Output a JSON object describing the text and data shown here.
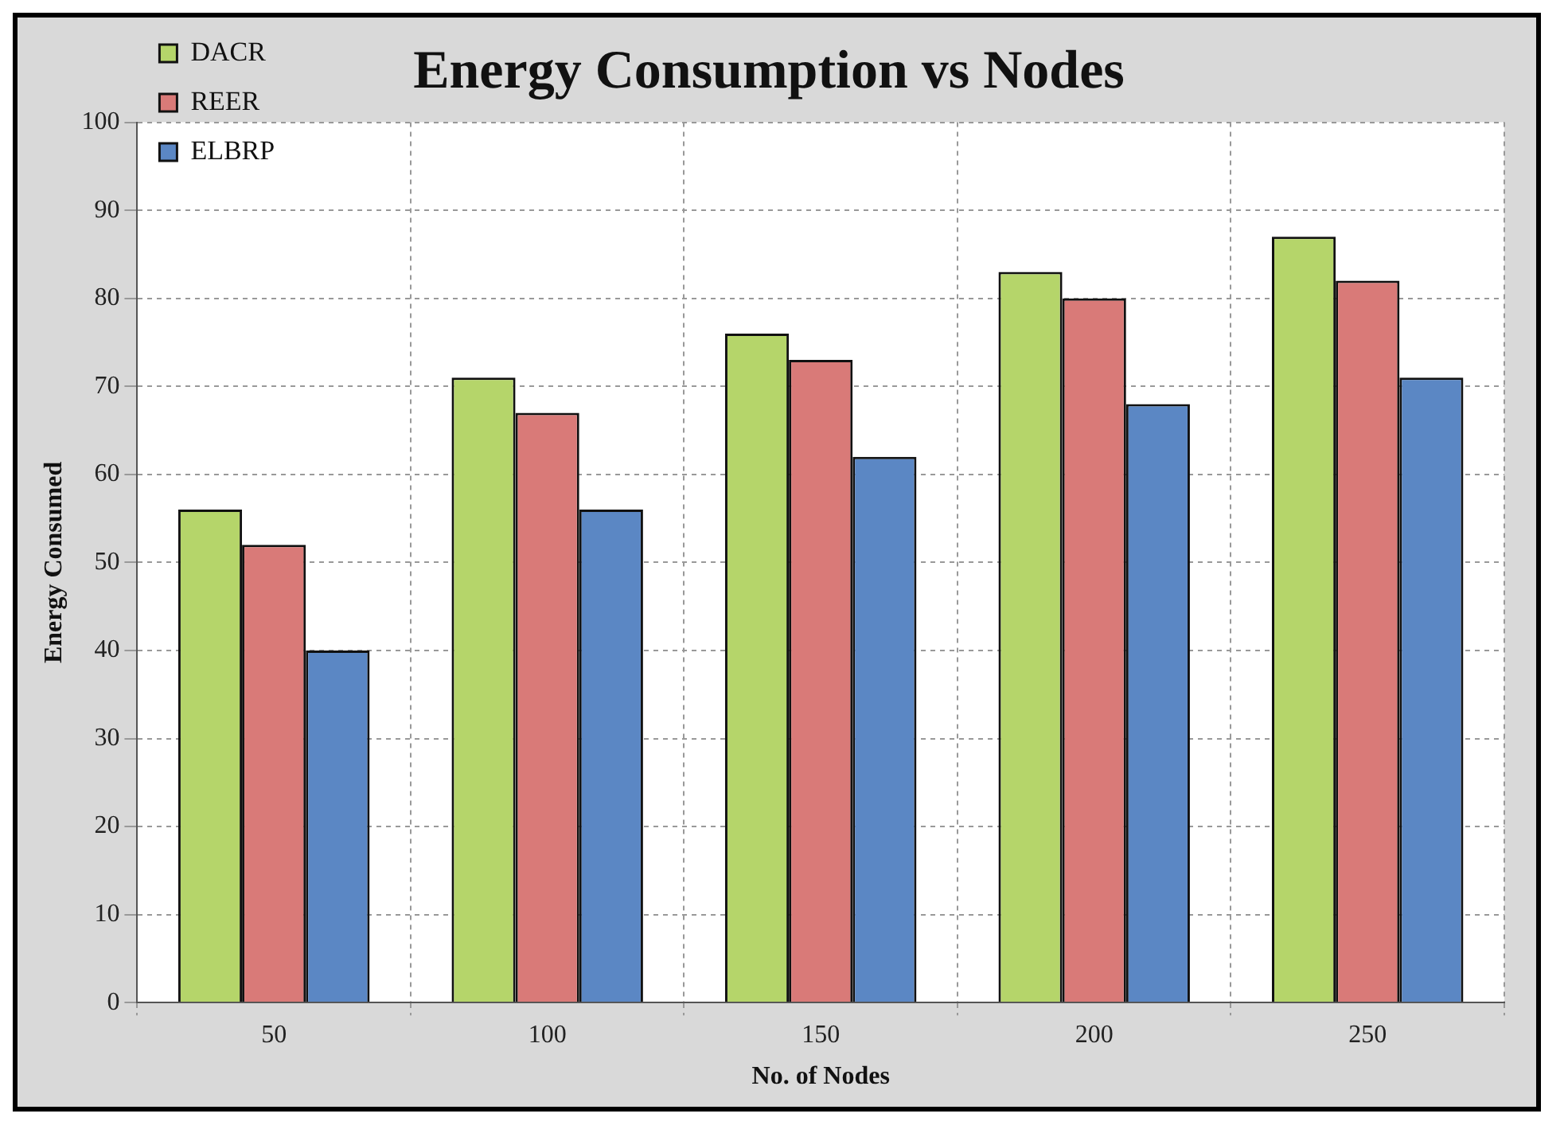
{
  "chart_data": {
    "type": "bar",
    "title": "Energy Consumption vs Nodes",
    "xlabel": "No. of Nodes",
    "ylabel": "Energy Consumed",
    "categories": [
      "50",
      "100",
      "150",
      "200",
      "250"
    ],
    "series": [
      {
        "name": "DACR",
        "color": "#b5d56a",
        "values": [
          56,
          71,
          76,
          83,
          87
        ]
      },
      {
        "name": "REER",
        "color": "#d97a78",
        "values": [
          52,
          67,
          73,
          80,
          82
        ]
      },
      {
        "name": "ELBRP",
        "color": "#5b87c4",
        "values": [
          40,
          56,
          62,
          68,
          71
        ]
      }
    ],
    "ylim": [
      0,
      100
    ],
    "yticks": [
      0,
      10,
      20,
      30,
      40,
      50,
      60,
      70,
      80,
      90,
      100
    ],
    "grid": true,
    "legend": "top left"
  }
}
